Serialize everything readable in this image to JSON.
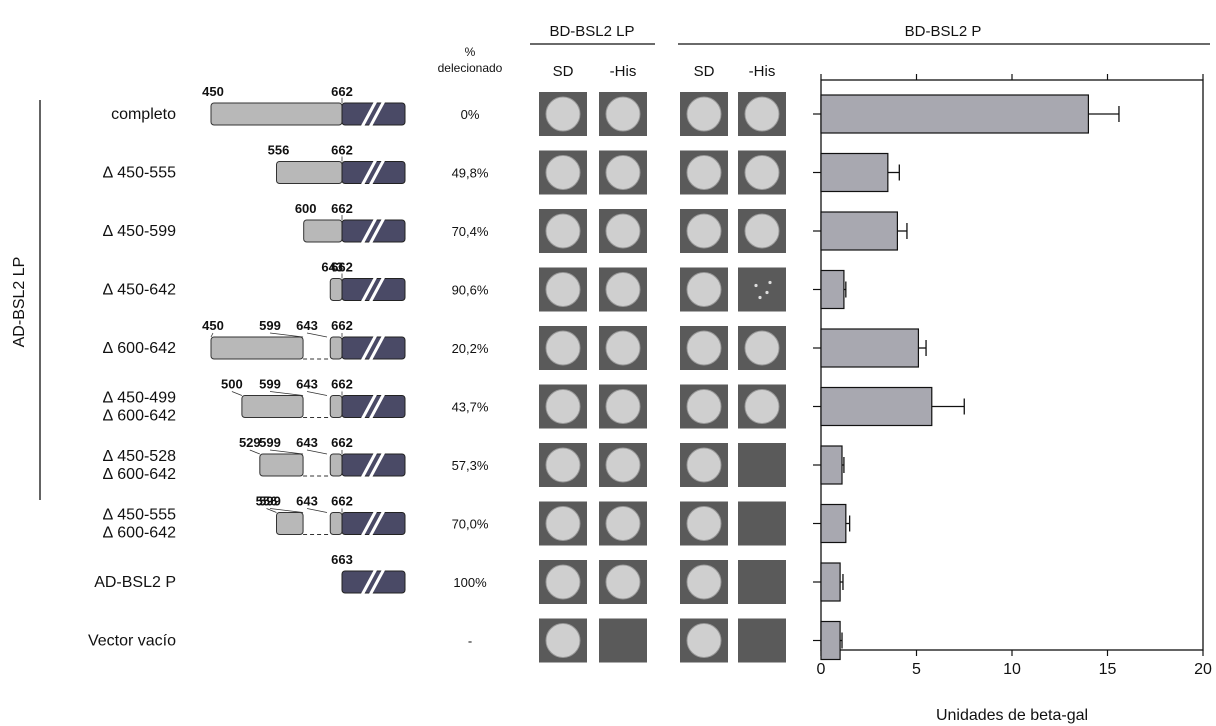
{
  "headers": {
    "bd_lp": "BD-BSL2 LP",
    "bd_p": "BD-BSL2 P",
    "pct_symbol": "%",
    "pct_word": "delecionado",
    "sd": "SD",
    "his": "-His",
    "group": "AD-BSL2 LP"
  },
  "rows": [
    {
      "label1": "completo",
      "label2": "",
      "pct": "0%",
      "nums": [
        "450",
        "662"
      ],
      "segs": [
        [
          450,
          662
        ]
      ],
      "dark": true,
      "lp_sd": "growth",
      "lp_his": "growth",
      "p_sd": "growth",
      "p_his": "growth"
    },
    {
      "label1": "∆ 450-555",
      "label2": "",
      "pct": "49,8%",
      "nums": [
        "556",
        "662"
      ],
      "segs": [
        [
          556,
          662
        ]
      ],
      "dark": true,
      "lp_sd": "growth",
      "lp_his": "growth",
      "p_sd": "growth",
      "p_his": "growth"
    },
    {
      "label1": "∆ 450-599",
      "label2": "",
      "pct": "70,4%",
      "nums": [
        "600",
        "662"
      ],
      "segs": [
        [
          600,
          662
        ]
      ],
      "dark": true,
      "lp_sd": "growth",
      "lp_his": "growth",
      "p_sd": "growth",
      "p_his": "growth"
    },
    {
      "label1": "∆ 450-642",
      "label2": "",
      "pct": "90,6%",
      "nums": [
        "643",
        "662"
      ],
      "segs": [
        [
          643,
          662
        ]
      ],
      "dark": true,
      "lp_sd": "growth",
      "lp_his": "growth",
      "p_sd": "growth",
      "p_his": "sparse"
    },
    {
      "label1": "∆ 600-642",
      "label2": "",
      "pct": "20,2%",
      "nums": [
        "450",
        "599",
        "643",
        "662"
      ],
      "segs": [
        [
          450,
          599
        ],
        [
          643,
          662
        ]
      ],
      "dark": true,
      "lp_sd": "growth",
      "lp_his": "growth",
      "p_sd": "growth",
      "p_his": "growth"
    },
    {
      "label1": "∆ 450-499",
      "label2": "∆ 600-642",
      "pct": "43,7%",
      "nums": [
        "500",
        "599",
        "643",
        "662"
      ],
      "segs": [
        [
          500,
          599
        ],
        [
          643,
          662
        ]
      ],
      "dark": true,
      "lp_sd": "growth",
      "lp_his": "growth",
      "p_sd": "growth",
      "p_his": "growth"
    },
    {
      "label1": "∆ 450-528",
      "label2": "∆ 600-642",
      "pct": "57,3%",
      "nums": [
        "529",
        "599",
        "643",
        "662"
      ],
      "segs": [
        [
          529,
          599
        ],
        [
          643,
          662
        ]
      ],
      "dark": true,
      "lp_sd": "growth",
      "lp_his": "growth",
      "p_sd": "growth",
      "p_his": "none"
    },
    {
      "label1": "∆ 450-555",
      "label2": "∆ 600-642",
      "pct": "70,0%",
      "nums": [
        "556",
        "599",
        "643",
        "662"
      ],
      "segs": [
        [
          556,
          599
        ],
        [
          643,
          662
        ]
      ],
      "dark": true,
      "lp_sd": "growth",
      "lp_his": "growth",
      "p_sd": "growth",
      "p_his": "none"
    },
    {
      "label1": "AD-BSL2 P",
      "label2": "",
      "pct": "100%",
      "nums": [
        "663"
      ],
      "segs": [],
      "dark": true,
      "lp_sd": "growth",
      "lp_his": "growth",
      "p_sd": "growth",
      "p_his": "none"
    },
    {
      "label1": "Vector vacío",
      "label2": "",
      "pct": "-",
      "nums": [],
      "segs": [],
      "dark": false,
      "lp_sd": "growth",
      "lp_his": "none",
      "p_sd": "growth",
      "p_his": "none"
    }
  ],
  "colors": {
    "light_bar": "#b8b8b8",
    "dark_bar": "#4a4a66",
    "plate": "#5a5a5a",
    "colony": "#cfcfcf"
  },
  "chart_data": {
    "type": "bar",
    "orientation": "horizontal",
    "categories": [
      "completo",
      "∆ 450-555",
      "∆ 450-599",
      "∆ 450-642",
      "∆ 600-642",
      "∆ 450-499 ∆ 600-642",
      "∆ 450-528 ∆ 600-642",
      "∆ 450-555 ∆ 600-642",
      "AD-BSL2 P",
      "Vector vacío"
    ],
    "values": [
      14.0,
      3.5,
      4.0,
      1.2,
      5.1,
      5.8,
      1.1,
      1.3,
      1.0,
      1.0
    ],
    "errors": [
      1.6,
      0.6,
      0.5,
      0.1,
      0.4,
      1.7,
      0.1,
      0.2,
      0.15,
      0.1
    ],
    "xlabel": "Unidades de beta-gal",
    "xlim": [
      0,
      20
    ],
    "xticks": [
      "0",
      "5",
      "10",
      "15",
      "20"
    ]
  }
}
